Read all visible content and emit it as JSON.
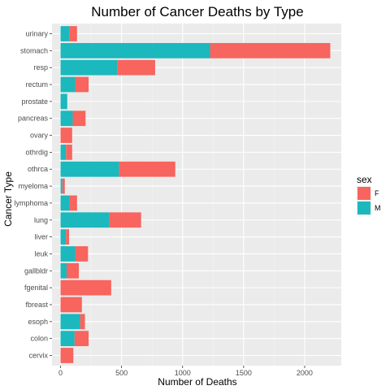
{
  "chart_data": {
    "type": "bar",
    "orientation": "horizontal",
    "stacked": true,
    "title": "Number of Cancer Deaths by Type",
    "xlabel": "Number of Deaths",
    "ylabel": "Cancer Type",
    "xlim": [
      -70,
      2300
    ],
    "x_ticks": [
      0,
      500,
      1000,
      1500,
      2000
    ],
    "grid": true,
    "legend": {
      "title": "sex",
      "position": "right"
    },
    "categories": [
      "urinary",
      "stomach",
      "resp",
      "rectum",
      "prostate",
      "pancreas",
      "ovary",
      "othrdig",
      "othrca",
      "myeloma",
      "lymphoma",
      "lung",
      "liver",
      "leuk",
      "gallbldr",
      "fgenital",
      "fbreast",
      "esoph",
      "colon",
      "cervix"
    ],
    "series": [
      {
        "name": "M",
        "color": "#1bb8bd",
        "values": [
          75,
          1225,
          465,
          120,
          55,
          100,
          0,
          45,
          480,
          15,
          70,
          400,
          45,
          120,
          50,
          0,
          0,
          160,
          115,
          0
        ]
      },
      {
        "name": "F",
        "color": "#f8645e",
        "values": [
          60,
          985,
          310,
          110,
          0,
          105,
          95,
          50,
          460,
          20,
          65,
          260,
          25,
          105,
          100,
          415,
          175,
          40,
          115,
          105
        ]
      }
    ]
  }
}
